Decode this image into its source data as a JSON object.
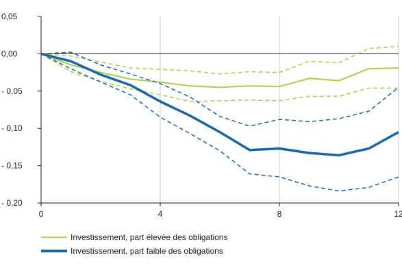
{
  "chart_data": {
    "type": "line",
    "x": [
      0,
      1,
      2,
      3,
      4,
      5,
      6,
      7,
      8,
      9,
      10,
      11,
      12
    ],
    "xticks": [
      "0",
      "4",
      "8",
      "12"
    ],
    "xtick_values": [
      0,
      4,
      8,
      12
    ],
    "xlim": [
      0,
      12
    ],
    "ylim": [
      -0.2,
      0.05
    ],
    "yticks": [
      "0,05",
      "0,00",
      "- 0,05",
      "- 0,10",
      "- 0,15",
      "- 0,20"
    ],
    "ytick_values": [
      0.05,
      0.0,
      -0.05,
      -0.1,
      -0.15,
      -0.2
    ],
    "grid": "vertical",
    "legend_position": "bottom-left",
    "series": [
      {
        "name": "Investissement, part élevée des obligations",
        "color": "#a8cf45",
        "style": "solid",
        "width": 2,
        "values": [
          0.0,
          -0.015,
          -0.025,
          -0.034,
          -0.038,
          -0.043,
          -0.045,
          -0.043,
          -0.044,
          -0.033,
          -0.036,
          -0.02,
          -0.019
        ]
      },
      {
        "name": "",
        "color": "#a8cf45",
        "style": "dashed",
        "width": 1.5,
        "values": [
          0.0,
          -0.003,
          -0.011,
          -0.019,
          -0.021,
          -0.023,
          -0.027,
          -0.024,
          -0.025,
          -0.01,
          -0.012,
          0.007,
          0.01
        ]
      },
      {
        "name": "",
        "color": "#a8cf45",
        "style": "dashed",
        "width": 1.5,
        "values": [
          0.0,
          -0.024,
          -0.037,
          -0.047,
          -0.055,
          -0.064,
          -0.063,
          -0.062,
          -0.063,
          -0.057,
          -0.057,
          -0.046,
          -0.046
        ]
      },
      {
        "name": "Investissement, part faible des obligations",
        "color": "#1565a8",
        "style": "solid",
        "width": 3.5,
        "values": [
          0.0,
          -0.01,
          -0.028,
          -0.042,
          -0.064,
          -0.083,
          -0.105,
          -0.129,
          -0.127,
          -0.133,
          -0.136,
          -0.127,
          -0.105
        ]
      },
      {
        "name": "",
        "color": "#1565a8",
        "style": "dashed",
        "width": 1.5,
        "values": [
          0.0,
          0.002,
          -0.015,
          -0.027,
          -0.04,
          -0.058,
          -0.084,
          -0.097,
          -0.088,
          -0.091,
          -0.087,
          -0.077,
          -0.045
        ]
      },
      {
        "name": "",
        "color": "#1565a8",
        "style": "dashed",
        "width": 1.5,
        "values": [
          0.0,
          -0.02,
          -0.038,
          -0.055,
          -0.085,
          -0.107,
          -0.13,
          -0.161,
          -0.165,
          -0.177,
          -0.184,
          -0.179,
          -0.165
        ]
      }
    ]
  },
  "legend": [
    {
      "label": "Investissement, part élevée des obligations",
      "color": "#a8cf45",
      "thickness": 2
    },
    {
      "label": "Investissement, part faible des obligations",
      "color": "#1565a8",
      "thickness": 4
    }
  ]
}
